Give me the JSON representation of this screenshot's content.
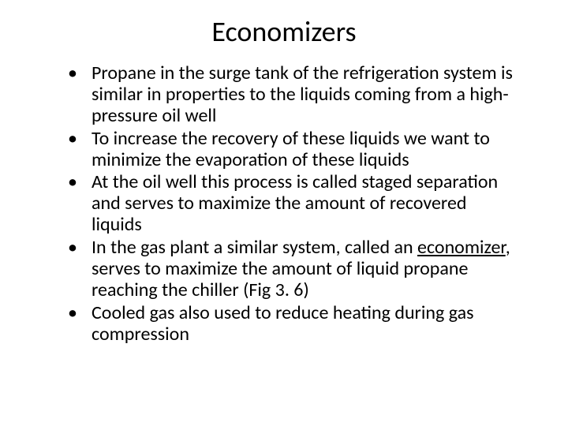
{
  "title": "Economizers",
  "bullets": [
    {
      "text": "Propane in the surge tank of the refrigeration system is similar in properties to the liquids coming from a high-pressure oil well"
    },
    {
      "text": "To increase the recovery of these liquids we want to minimize the evaporation of these liquids"
    },
    {
      "text": "At the oil well this process is called staged separation and serves to maximize the amount of recovered liquids"
    },
    {
      "prefix": "In the gas plant a similar system, called an ",
      "underlined": "economizer",
      "suffix": ", serves to maximize the amount of liquid propane reaching the chiller (Fig 3. 6)"
    },
    {
      "text": "Cooled gas also used to reduce heating during gas compression"
    }
  ],
  "typography": {
    "title_fontsize": 36,
    "body_fontsize": 24,
    "font_family": "Calibri"
  },
  "colors": {
    "background": "#ffffff",
    "text": "#000000"
  }
}
